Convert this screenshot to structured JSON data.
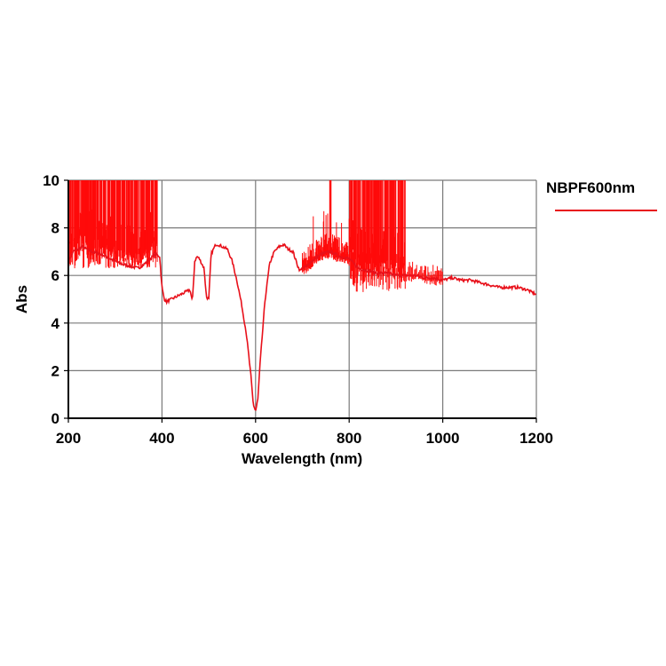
{
  "chart_data": {
    "type": "line",
    "title": "",
    "xlabel": "Wavelength (nm)",
    "ylabel": "Abs",
    "xlim": [
      200,
      1200
    ],
    "ylim": [
      0,
      10
    ],
    "x_ticks": [
      200,
      400,
      600,
      800,
      1000,
      1200
    ],
    "y_ticks": [
      0,
      2,
      4,
      6,
      8,
      10
    ],
    "grid": true,
    "legend_position": "right-top",
    "series": [
      {
        "name": "NBPF600nm",
        "color": "#e8101a",
        "x": [
          200,
          210,
          230,
          250,
          270,
          290,
          310,
          330,
          350,
          370,
          385,
          395,
          400,
          405,
          410,
          420,
          430,
          440,
          450,
          460,
          465,
          470,
          475,
          480,
          490,
          495,
          500,
          505,
          510,
          515,
          520,
          530,
          540,
          550,
          560,
          570,
          580,
          590,
          595,
          600,
          605,
          610,
          620,
          630,
          640,
          650,
          660,
          670,
          680,
          690,
          695,
          700,
          710,
          720,
          740,
          760,
          780,
          800,
          820,
          840,
          860,
          880,
          900,
          920,
          940,
          960,
          980,
          1000,
          1020,
          1040,
          1060,
          1080,
          1100,
          1120,
          1140,
          1160,
          1180,
          1200
        ],
        "y": [
          6.6,
          7.0,
          7.2,
          7.0,
          6.9,
          6.7,
          6.5,
          6.4,
          6.3,
          6.6,
          6.9,
          6.8,
          5.5,
          5.0,
          4.9,
          5.0,
          5.1,
          5.2,
          5.3,
          5.4,
          4.9,
          6.6,
          6.8,
          6.7,
          6.3,
          5.1,
          5.0,
          6.9,
          7.1,
          7.3,
          7.3,
          7.2,
          7.1,
          6.6,
          5.8,
          4.8,
          3.6,
          1.8,
          0.6,
          0.3,
          0.8,
          2.4,
          4.9,
          6.5,
          7.0,
          7.2,
          7.3,
          7.1,
          7.0,
          6.4,
          6.2,
          6.3,
          6.4,
          6.6,
          6.9,
          7.0,
          6.8,
          6.7,
          6.3,
          6.2,
          6.1,
          6.1,
          6.0,
          6.0,
          6.0,
          5.9,
          5.9,
          5.8,
          5.9,
          5.8,
          5.8,
          5.7,
          5.6,
          5.5,
          5.5,
          5.5,
          5.4,
          5.2
        ],
        "noise_regions": [
          {
            "x_range": [
              200,
              390
            ],
            "floor": 6.3,
            "ceiling": 10,
            "description": "saturated noise spikes reaching 10"
          },
          {
            "x_range": [
              700,
              800
            ],
            "floor": 6.4,
            "ceiling": 10,
            "description": "moderate noise spikes, one reaching 10 near 760 nm"
          },
          {
            "x_range": [
              800,
              920
            ],
            "floor": 5.3,
            "ceiling": 10,
            "description": "saturated noise spikes reaching 10"
          },
          {
            "x_range": [
              920,
              1000
            ],
            "floor": 5.9,
            "ceiling": 6.6,
            "description": "small noise"
          }
        ]
      }
    ],
    "annotations": []
  },
  "legend": {
    "label": "NBPF600nm"
  },
  "axes": {
    "x_title": "Wavelength (nm)",
    "y_title": "Abs",
    "x_tick_labels": [
      "200",
      "400",
      "600",
      "800",
      "1000",
      "1200"
    ],
    "y_tick_labels": [
      "0",
      "2",
      "4",
      "6",
      "8",
      "10"
    ]
  }
}
